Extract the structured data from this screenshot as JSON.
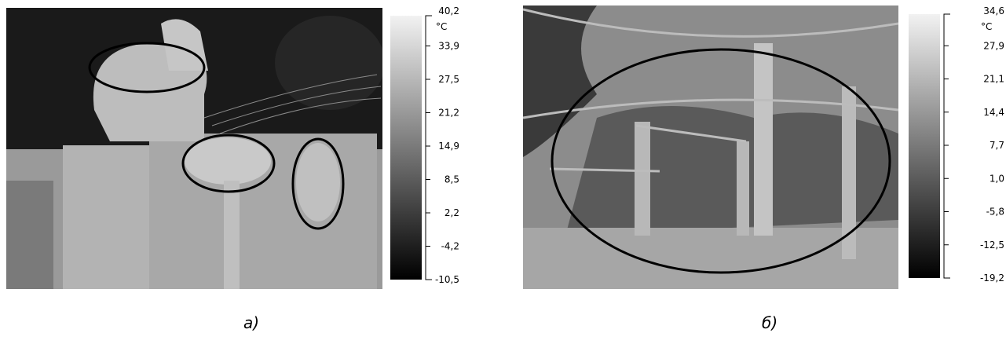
{
  "panels": [
    {
      "caption": "а)",
      "unit": "°C",
      "scale_labels": [
        "40,2",
        "33,9",
        "27,5",
        "21,2",
        "14,9",
        "8,5",
        "2,2",
        "-4,2",
        "-10,5"
      ]
    },
    {
      "caption": "б)",
      "unit": "°C",
      "scale_labels": [
        "34,6",
        "27,9",
        "21,1",
        "14,4",
        "7,7",
        "1,0",
        "-5,8",
        "-12,5",
        "-19,2"
      ]
    }
  ]
}
